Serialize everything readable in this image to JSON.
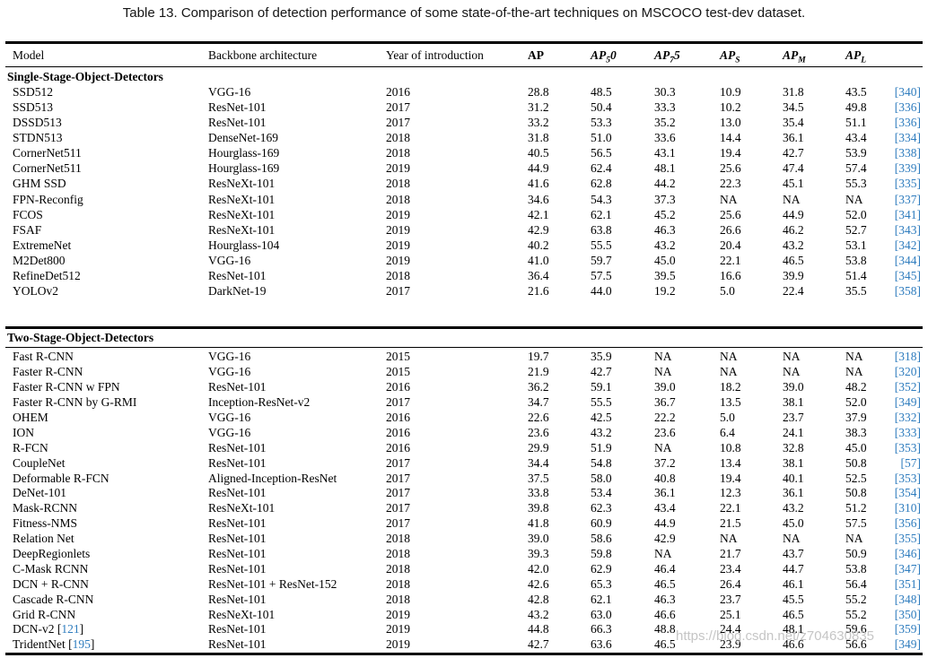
{
  "title": "Table 13. Comparison of detection performance of some state-of-the-art techniques on MSCOCO test-dev dataset.",
  "watermark": "https://blog.csdn.net/z704630835",
  "colors": {
    "citation_blue": "#2e7cbe",
    "text": "#000000",
    "watermark_gray": "#bbbbbb",
    "background": "#ffffff"
  },
  "table": {
    "columns": [
      {
        "key": "model",
        "label": "Model"
      },
      {
        "key": "backbone",
        "label": "Backbone architecture"
      },
      {
        "key": "year",
        "label": "Year of introduction"
      },
      {
        "key": "ap",
        "pre": "AP",
        "bold": true
      },
      {
        "key": "ap50",
        "pre": "AP",
        "sub": "5",
        "post": "0",
        "italic": true
      },
      {
        "key": "ap75",
        "pre": "AP",
        "sub": "7",
        "post": "5",
        "italic": true
      },
      {
        "key": "aps",
        "pre": "AP",
        "sub": "S",
        "italic": true
      },
      {
        "key": "apm",
        "pre": "AP",
        "sub": "M",
        "italic": true
      },
      {
        "key": "apl",
        "pre": "AP",
        "sub": "L",
        "italic": true
      },
      {
        "key": "ref",
        "label": ""
      }
    ],
    "sections": [
      {
        "heading": "Single-Stage-Object-Detectors",
        "rows": [
          {
            "model": "SSD512",
            "backbone": "VGG-16",
            "year": "2016",
            "ap": "28.8",
            "ap50": "48.5",
            "ap75": "30.3",
            "aps": "10.9",
            "apm": "31.8",
            "apl": "43.5",
            "ref": "340"
          },
          {
            "model": "SSD513",
            "backbone": "ResNet-101",
            "year": "2017",
            "ap": "31.2",
            "ap50": "50.4",
            "ap75": "33.3",
            "aps": "10.2",
            "apm": "34.5",
            "apl": "49.8",
            "ref": "336"
          },
          {
            "model": "DSSD513",
            "backbone": "ResNet-101",
            "year": "2017",
            "ap": "33.2",
            "ap50": "53.3",
            "ap75": "35.2",
            "aps": "13.0",
            "apm": "35.4",
            "apl": "51.1",
            "ref": "336"
          },
          {
            "model": "STDN513",
            "backbone": "DenseNet-169",
            "year": "2018",
            "ap": "31.8",
            "ap50": "51.0",
            "ap75": "33.6",
            "aps": "14.4",
            "apm": "36.1",
            "apl": "43.4",
            "ref": "334"
          },
          {
            "model": "CornerNet511",
            "backbone": "Hourglass-169",
            "year": "2018",
            "ap": "40.5",
            "ap50": "56.5",
            "ap75": "43.1",
            "aps": "19.4",
            "apm": "42.7",
            "apl": "53.9",
            "ref": "338"
          },
          {
            "model": "CornerNet511",
            "backbone": "Hourglass-169",
            "year": "2019",
            "ap": "44.9",
            "ap50": "62.4",
            "ap75": "48.1",
            "aps": "25.6",
            "apm": "47.4",
            "apl": "57.4",
            "ref": "339"
          },
          {
            "model": "GHM SSD",
            "backbone": "ResNeXt-101",
            "year": "2018",
            "ap": "41.6",
            "ap50": "62.8",
            "ap75": "44.2",
            "aps": "22.3",
            "apm": "45.1",
            "apl": "55.3",
            "ref": "335"
          },
          {
            "model": "FPN-Reconfig",
            "backbone": "ResNeXt-101",
            "year": "2018",
            "ap": "34.6",
            "ap50": "54.3",
            "ap75": "37.3",
            "aps": "NA",
            "apm": "NA",
            "apl": "NA",
            "ref": "337"
          },
          {
            "model": "FCOS",
            "backbone": "ResNeXt-101",
            "year": "2019",
            "ap": "42.1",
            "ap50": "62.1",
            "ap75": "45.2",
            "aps": "25.6",
            "apm": "44.9",
            "apl": "52.0",
            "ref": "341"
          },
          {
            "model": "FSAF",
            "backbone": "ResNeXt-101",
            "year": "2019",
            "ap": "42.9",
            "ap50": "63.8",
            "ap75": "46.3",
            "aps": "26.6",
            "apm": "46.2",
            "apl": "52.7",
            "ref": "343"
          },
          {
            "model": "ExtremeNet",
            "backbone": "Hourglass-104",
            "year": "2019",
            "ap": "40.2",
            "ap50": "55.5",
            "ap75": "43.2",
            "aps": "20.4",
            "apm": "43.2",
            "apl": "53.1",
            "ref": "342"
          },
          {
            "model": "M2Det800",
            "backbone": "VGG-16",
            "year": "2019",
            "ap": "41.0",
            "ap50": "59.7",
            "ap75": "45.0",
            "aps": "22.1",
            "apm": "46.5",
            "apl": "53.8",
            "ref": "344"
          },
          {
            "model": "RefineDet512",
            "backbone": "ResNet-101",
            "year": "2018",
            "ap": "36.4",
            "ap50": "57.5",
            "ap75": "39.5",
            "aps": "16.6",
            "apm": "39.9",
            "apl": "51.4",
            "ref": "345"
          },
          {
            "model": "YOLOv2",
            "backbone": "DarkNet-19",
            "year": "2017",
            "ap": "21.6",
            "ap50": "44.0",
            "ap75": "19.2",
            "aps": "5.0",
            "apm": "22.4",
            "apl": "35.5",
            "ref": "358"
          }
        ]
      },
      {
        "heading": "Two-Stage-Object-Detectors",
        "rows": [
          {
            "model": "Fast R-CNN",
            "backbone": "VGG-16",
            "year": "2015",
            "ap": "19.7",
            "ap50": "35.9",
            "ap75": "NA",
            "aps": "NA",
            "apm": "NA",
            "apl": "NA",
            "ref": "318"
          },
          {
            "model": "Faster R-CNN",
            "backbone": "VGG-16",
            "year": "2015",
            "ap": "21.9",
            "ap50": "42.7",
            "ap75": "NA",
            "aps": "NA",
            "apm": "NA",
            "apl": "NA",
            "ref": "320"
          },
          {
            "model": "Faster R-CNN w FPN",
            "backbone": "ResNet-101",
            "year": "2016",
            "ap": "36.2",
            "ap50": "59.1",
            "ap75": "39.0",
            "aps": "18.2",
            "apm": "39.0",
            "apl": "48.2",
            "ref": "352"
          },
          {
            "model": "Faster R-CNN by G-RMI",
            "backbone": "Inception-ResNet-v2",
            "year": "2017",
            "ap": "34.7",
            "ap50": "55.5",
            "ap75": "36.7",
            "aps": "13.5",
            "apm": "38.1",
            "apl": "52.0",
            "ref": "349"
          },
          {
            "model": "OHEM",
            "backbone": "VGG-16",
            "year": "2016",
            "ap": "22.6",
            "ap50": "42.5",
            "ap75": "22.2",
            "aps": "5.0",
            "apm": "23.7",
            "apl": "37.9",
            "ref": "332"
          },
          {
            "model": "ION",
            "backbone": "VGG-16",
            "year": "2016",
            "ap": "23.6",
            "ap50": "43.2",
            "ap75": "23.6",
            "aps": "6.4",
            "apm": "24.1",
            "apl": "38.3",
            "ref": "333"
          },
          {
            "model": "R-FCN",
            "backbone": "ResNet-101",
            "year": "2016",
            "ap": "29.9",
            "ap50": "51.9",
            "ap75": "NA",
            "aps": "10.8",
            "apm": "32.8",
            "apl": "45.0",
            "ref": "353"
          },
          {
            "model": "CoupleNet",
            "backbone": "ResNet-101",
            "year": "2017",
            "ap": "34.4",
            "ap50": "54.8",
            "ap75": "37.2",
            "aps": "13.4",
            "apm": "38.1",
            "apl": "50.8",
            "ref": "57"
          },
          {
            "model": "Deformable R-FCN",
            "backbone": "Aligned-Inception-ResNet",
            "year": "2017",
            "ap": "37.5",
            "ap50": "58.0",
            "ap75": "40.8",
            "aps": "19.4",
            "apm": "40.1",
            "apl": "52.5",
            "ref": "353"
          },
          {
            "model": "DeNet-101",
            "backbone": "ResNet-101",
            "year": "2017",
            "ap": "33.8",
            "ap50": "53.4",
            "ap75": "36.1",
            "aps": "12.3",
            "apm": "36.1",
            "apl": "50.8",
            "ref": "354"
          },
          {
            "model": "Mask-RCNN",
            "backbone": "ResNeXt-101",
            "year": "2017",
            "ap": "39.8",
            "ap50": "62.3",
            "ap75": "43.4",
            "aps": "22.1",
            "apm": "43.2",
            "apl": "51.2",
            "ref": "310"
          },
          {
            "model": "Fitness-NMS",
            "backbone": "ResNet-101",
            "year": "2017",
            "ap": "41.8",
            "ap50": "60.9",
            "ap75": "44.9",
            "aps": "21.5",
            "apm": "45.0",
            "apl": "57.5",
            "ref": "356"
          },
          {
            "model": "Relation Net",
            "backbone": "ResNet-101",
            "year": "2018",
            "ap": "39.0",
            "ap50": "58.6",
            "ap75": "42.9",
            "aps": "NA",
            "apm": "NA",
            "apl": "NA",
            "ref": "355"
          },
          {
            "model": "DeepRegionlets",
            "backbone": "ResNet-101",
            "year": "2018",
            "ap": "39.3",
            "ap50": "59.8",
            "ap75": "NA",
            "aps": "21.7",
            "apm": "43.7",
            "apl": "50.9",
            "ref": "346"
          },
          {
            "model": "C-Mask RCNN",
            "backbone": "ResNet-101",
            "year": "2018",
            "ap": "42.0",
            "ap50": "62.9",
            "ap75": "46.4",
            "aps": "23.4",
            "apm": "44.7",
            "apl": "53.8",
            "ref": "347"
          },
          {
            "model": "DCN + R-CNN",
            "backbone": "ResNet-101 + ResNet-152",
            "year": "2018",
            "ap": "42.6",
            "ap50": "65.3",
            "ap75": "46.5",
            "aps": "26.4",
            "apm": "46.1",
            "apl": "56.4",
            "ref": "351"
          },
          {
            "model": "Cascade R-CNN",
            "backbone": "ResNet-101",
            "year": "2018",
            "ap": "42.8",
            "ap50": "62.1",
            "ap75": "46.3",
            "aps": "23.7",
            "apm": "45.5",
            "apl": "55.2",
            "ref": "348"
          },
          {
            "model": "Grid R-CNN",
            "backbone": "ResNeXt-101",
            "year": "2019",
            "ap": "43.2",
            "ap50": "63.0",
            "ap75": "46.6",
            "aps": "25.1",
            "apm": "46.5",
            "apl": "55.2",
            "ref": "350"
          },
          {
            "model": "DCN-v2",
            "model_ref": "121",
            "backbone": "ResNet-101",
            "year": "2019",
            "ap": "44.8",
            "ap50": "66.3",
            "ap75": "48.8",
            "aps": "24.4",
            "apm": "48.1",
            "apl": "59.6",
            "ref": "359"
          },
          {
            "model": "TridentNet",
            "model_ref": "195",
            "backbone": "ResNet-101",
            "year": "2019",
            "ap": "42.7",
            "ap50": "63.6",
            "ap75": "46.5",
            "aps": "23.9",
            "apm": "46.6",
            "apl": "56.6",
            "ref": "349"
          }
        ]
      }
    ]
  }
}
